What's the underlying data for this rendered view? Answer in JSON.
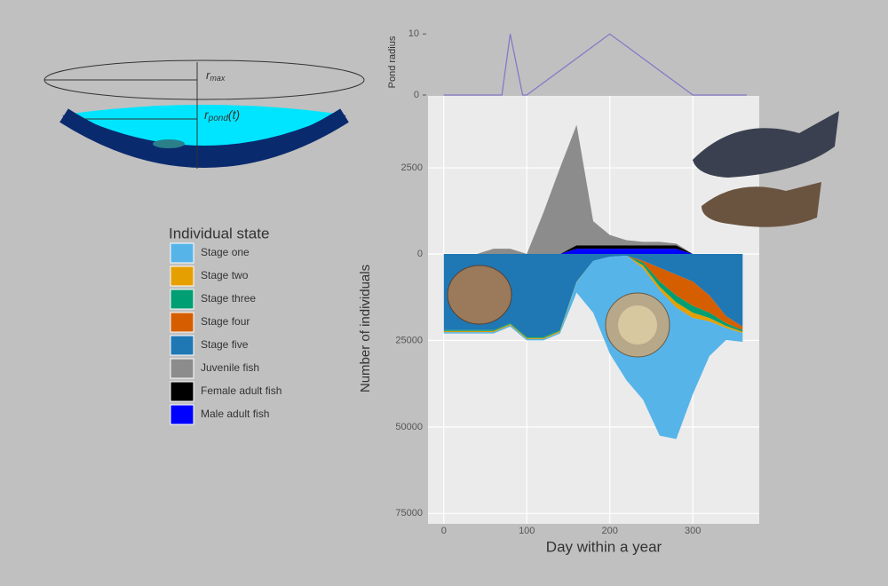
{
  "diagram": {
    "r_max": {
      "symbol": "r",
      "subscript": "max"
    },
    "r_pond": {
      "symbol": "r",
      "subscript": "pond",
      "argument": "(t)"
    }
  },
  "chart_data": [
    {
      "type": "line",
      "y_label": "Pond radius",
      "color": "#8878c8",
      "x": [
        0,
        70,
        80,
        95,
        100,
        200,
        300,
        365
      ],
      "values": [
        0,
        0,
        10,
        0,
        0,
        10,
        0,
        0
      ],
      "xlim": [
        -19,
        380
      ],
      "ylim": [
        0,
        11.2
      ],
      "yticks": [
        0,
        10
      ]
    },
    {
      "type": "stacked_area",
      "x_label": "Day within a year",
      "y_label": "Number of individuals",
      "legend_title": "Individual state",
      "x": [
        0,
        20,
        40,
        60,
        80,
        100,
        120,
        140,
        160,
        180,
        200,
        220,
        240,
        260,
        280,
        300,
        320,
        340,
        360
      ],
      "xlim": [
        -19,
        380
      ],
      "xticks": [
        0,
        100,
        200,
        300
      ],
      "ylim": [
        -78000,
        0
      ],
      "yticks": [
        {
          "value": -75000,
          "label": "75000"
        },
        {
          "value": -50000,
          "label": "50000"
        },
        {
          "value": -25000,
          "label": "25000"
        }
      ],
      "ylim_upper": [
        0,
        4590
      ],
      "yticks_upper": [
        0,
        2500
      ],
      "grid": true,
      "series": [
        {
          "name": "Stage one",
          "color": "#56b4e9",
          "panel": "lower",
          "values": [
            -400,
            -400,
            -400,
            -400,
            -400,
            -400,
            -400,
            -400,
            -3000,
            -15000,
            -28000,
            -36000,
            -38000,
            -42000,
            -38000,
            -22000,
            -10000,
            -3500,
            -2500
          ]
        },
        {
          "name": "Stage two",
          "color": "#e69f00",
          "panel": "lower",
          "values": [
            -300,
            -300,
            -300,
            -300,
            -300,
            -300,
            -300,
            -300,
            -100,
            0,
            0,
            0,
            -800,
            -1000,
            -1500,
            -1500,
            -1000,
            -600,
            -400
          ]
        },
        {
          "name": "Stage three",
          "color": "#009e73",
          "panel": "lower",
          "values": [
            -300,
            -300,
            -300,
            -300,
            -300,
            -300,
            -300,
            -300,
            -100,
            0,
            0,
            0,
            -800,
            -1500,
            -2000,
            -2000,
            -1500,
            -800,
            -500
          ]
        },
        {
          "name": "Stage four",
          "color": "#d55e00",
          "panel": "lower",
          "values": [
            0,
            0,
            0,
            0,
            0,
            0,
            0,
            0,
            0,
            0,
            0,
            0,
            -500,
            -4000,
            -6000,
            -7000,
            -5000,
            -2000,
            -1000
          ]
        },
        {
          "name": "Stage five",
          "color": "#1f78b4",
          "panel": "lower",
          "values": [
            -22000,
            -22000,
            -22000,
            -22000,
            -20000,
            -24000,
            -24000,
            -22000,
            -8000,
            -2000,
            -800,
            -500,
            -2000,
            -4000,
            -6000,
            -8000,
            -12000,
            -18000,
            -21000
          ]
        },
        {
          "name": "Juvenile fish",
          "color": "#8c8c8c",
          "panel": "upper",
          "values": [
            0,
            0,
            0,
            150,
            150,
            0,
            1200,
            2500,
            3500,
            700,
            300,
            150,
            100,
            100,
            50,
            0,
            0,
            0,
            0
          ]
        },
        {
          "name": "Female adult fish",
          "color": "#000000",
          "panel": "upper",
          "values": [
            0,
            0,
            0,
            0,
            0,
            0,
            0,
            0,
            100,
            100,
            100,
            100,
            100,
            100,
            100,
            0,
            0,
            0,
            0
          ]
        },
        {
          "name": "Male adult fish",
          "color": "#0000ff",
          "panel": "upper",
          "values": [
            0,
            0,
            0,
            0,
            0,
            0,
            0,
            0,
            150,
            150,
            150,
            150,
            150,
            150,
            150,
            0,
            0,
            0,
            0
          ]
        }
      ]
    }
  ]
}
